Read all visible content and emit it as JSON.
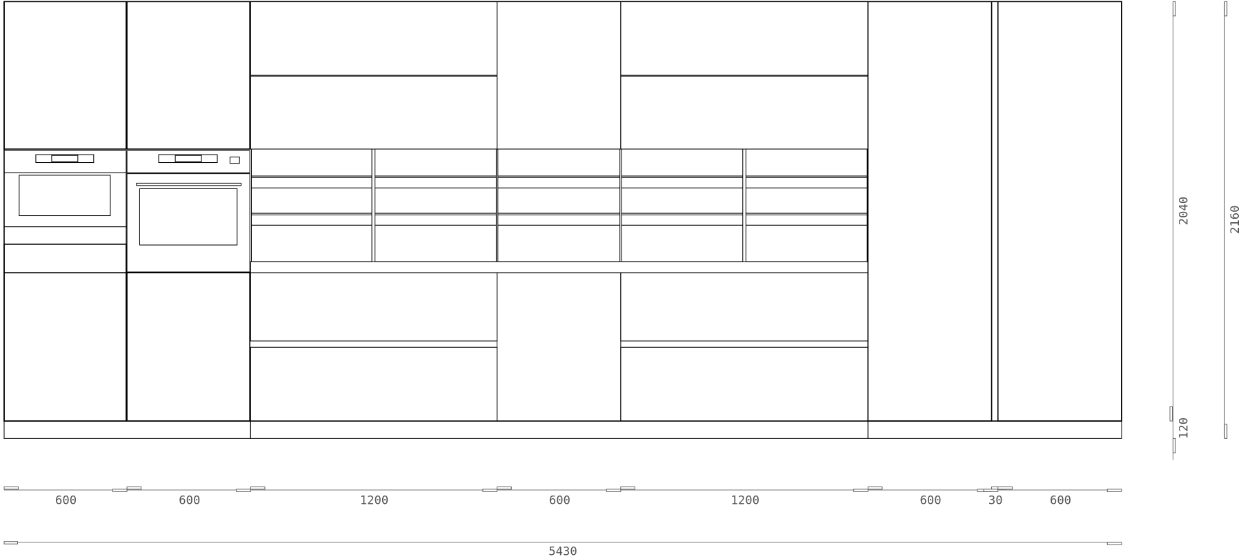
{
  "drawing": {
    "type": "kitchen elevation",
    "line_color": "#000000",
    "dimension_color": "#777777"
  },
  "dimensions": {
    "widths": [
      "600",
      "600",
      "1200",
      "600",
      "1200",
      "600",
      "30",
      "600"
    ],
    "total_width": "5430",
    "height_cabinet": "2040",
    "height_plinth": "120",
    "height_total": "2160"
  }
}
